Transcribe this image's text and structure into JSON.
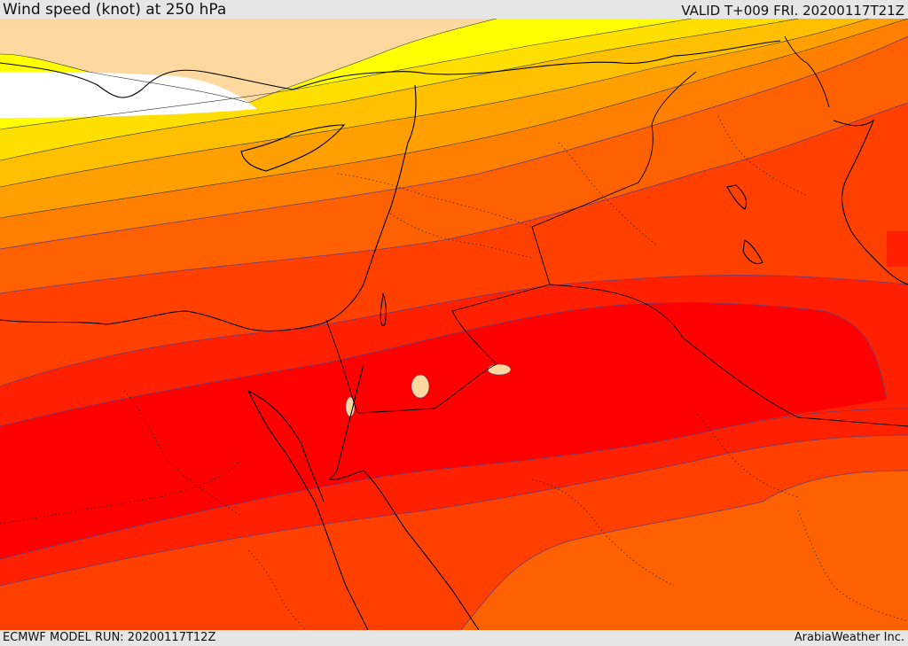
{
  "header": {
    "title": "Wind speed (knot) at 250 hPa",
    "valid": "VALID T+009 FRI. 20200117T21Z"
  },
  "footer": {
    "model_run": "ECMWF MODEL RUN: 20200117T12Z",
    "credit": "ArabiaWeather Inc."
  },
  "colors": {
    "band_white": "#ffffff",
    "band_tan": "#fdd9a0",
    "band_yellow": "#ffff00",
    "band_gold": "#ffdf00",
    "band_amber": "#ffc000",
    "band_lightorange": "#ffa000",
    "band_orange": "#ff8000",
    "band_darkorange": "#ff6000",
    "band_redorange": "#ff4000",
    "band_red_orange2": "#ff2000",
    "band_red": "#ff0000",
    "coastline": "#000000",
    "contour": "#6a3a7a"
  }
}
